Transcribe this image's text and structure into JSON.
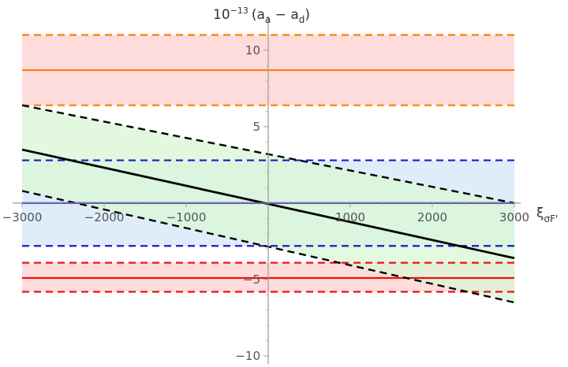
{
  "chart_data": {
    "type": "line",
    "xlabel_main": "ξ",
    "xlabel_sub": "σF'",
    "ylabel_base": "10",
    "ylabel_exp": "−13",
    "ylabel_text": "(a",
    "ylabel_sub1": "a",
    "ylabel_mid": " − a",
    "ylabel_sub2": "d",
    "ylabel_close": ")",
    "xlim": [
      -3000,
      3000
    ],
    "ylim": [
      -10,
      12
    ],
    "xticks": [
      -3000,
      -2000,
      -1000,
      1000,
      2000,
      3000
    ],
    "yticks": [
      -10,
      -5,
      5,
      10
    ],
    "x_tick_labels": [
      "−3000",
      "−2000",
      "−1000",
      "1000",
      "2000",
      "3000"
    ],
    "y_tick_labels": [
      "−10",
      "−5",
      "5",
      "10"
    ],
    "bands": [
      {
        "name": "orange",
        "ymid": 8.7,
        "ylow": 6.4,
        "yhigh": 11.0,
        "line_color": "#ff8000",
        "fill_color": "#ffd6d6"
      },
      {
        "name": "blue",
        "ymid": 0.0,
        "ylow": -2.8,
        "yhigh": 2.8,
        "line_color": "#1a1acc",
        "fill_color": "#d9eaf9"
      },
      {
        "name": "red",
        "ymid": -4.9,
        "ylow": -5.8,
        "yhigh": -3.9,
        "line_color": "#ee1111",
        "fill_color": "#ffd6d6"
      }
    ],
    "sloped_band": {
      "name": "black",
      "x": [
        -3000,
        3000
      ],
      "mid": [
        3.5,
        -3.6
      ],
      "upper": [
        6.4,
        0.0
      ],
      "lower": [
        0.8,
        -6.5
      ],
      "line_color": "#000000",
      "fill_color": "#d9f7d4"
    },
    "grid": false,
    "legend": "none"
  }
}
